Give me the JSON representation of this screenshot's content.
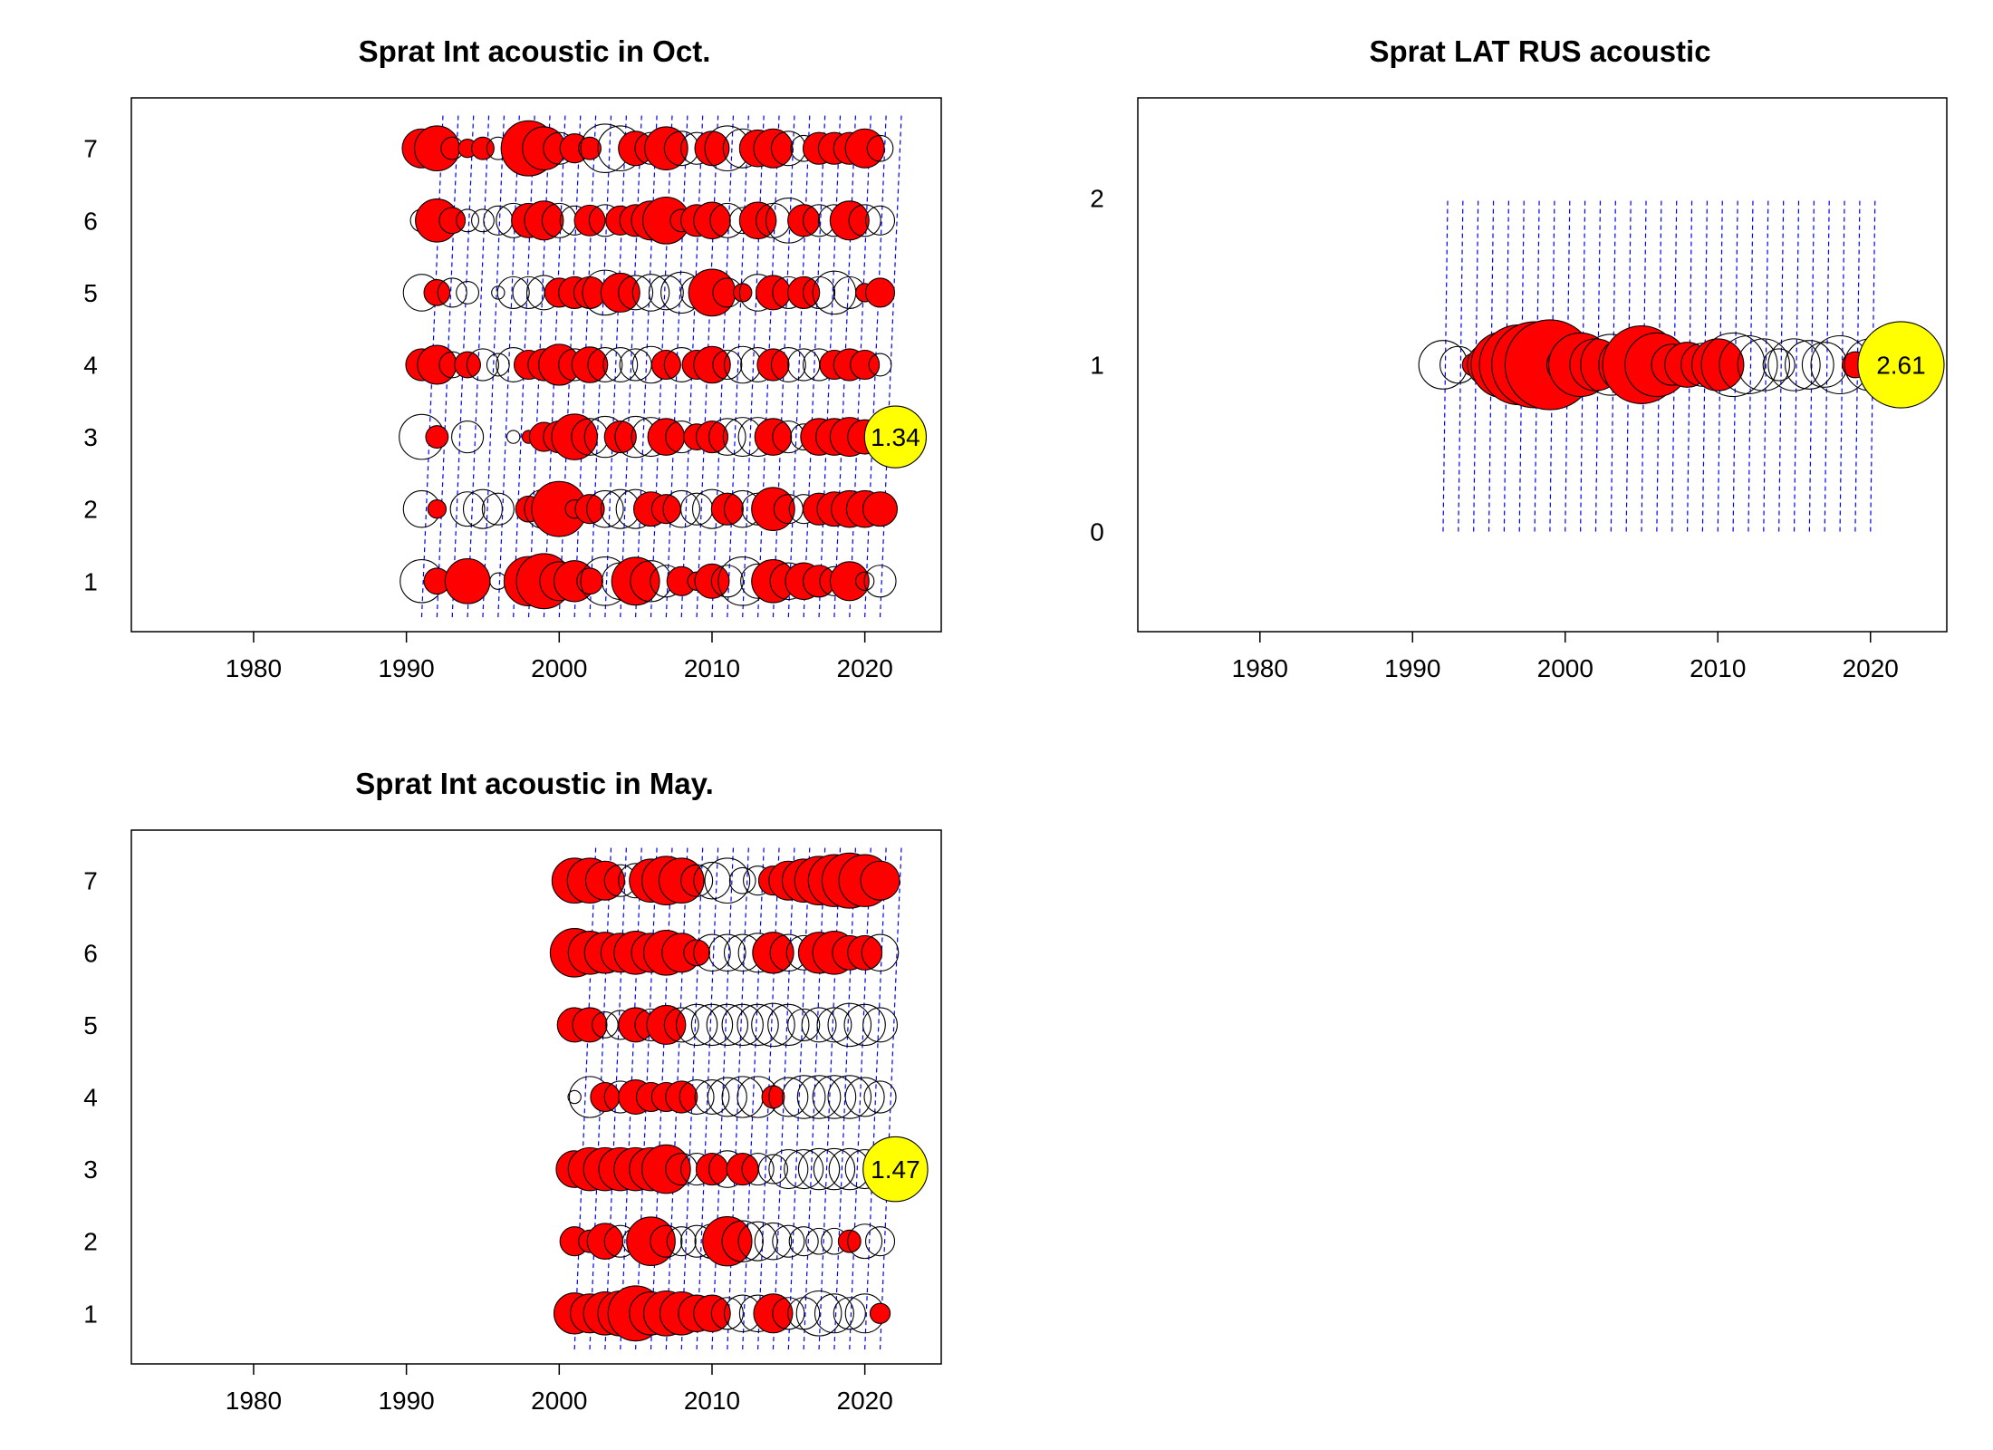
{
  "chart_data": [
    {
      "type": "scatter",
      "subtype": "residual-bubble",
      "title": "Sprat Int acoustic in Oct.",
      "xlim": [
        1972,
        2025
      ],
      "ylim": [
        0.3,
        7.7
      ],
      "xticks": [
        1980,
        1990,
        2000,
        2010,
        2020
      ],
      "yticks": [
        1,
        2,
        3,
        4,
        5,
        6,
        7
      ],
      "years": [
        1991,
        1992,
        1993,
        1994,
        1995,
        1996,
        1997,
        1998,
        1999,
        2000,
        2001,
        2002,
        2003,
        2004,
        2005,
        2006,
        2007,
        2008,
        2009,
        2010,
        2011,
        2012,
        2013,
        2014,
        2015,
        2016,
        2017,
        2018,
        2019,
        2020,
        2021
      ],
      "residuals": [
        [
          -0.55,
          0.2,
          0,
          0.6,
          0,
          -0.08,
          0,
          0.72,
          0.9,
          -0.45,
          0.5,
          0.2,
          -0.7,
          -0.4,
          0.68,
          -0.5,
          -0.3,
          0.25,
          0.1,
          0.35,
          -0.3,
          -0.7,
          -0.35,
          0.55,
          -0.4,
          0.4,
          0.3,
          -0.25,
          0.45,
          -0.1,
          -0.3
        ],
        [
          -0.4,
          0.1,
          0,
          -0.35,
          -0.45,
          -0.3,
          0,
          0.2,
          -0.45,
          0.9,
          0.1,
          0.25,
          -0.4,
          -0.45,
          -0.45,
          0.35,
          0.25,
          -0.4,
          -0.3,
          -0.45,
          0.3,
          -0.4,
          -0.3,
          0.55,
          -0.25,
          -0.25,
          0.3,
          0.35,
          0.4,
          0.4,
          0.35
        ],
        [
          -0.6,
          0.15,
          0,
          -0.3,
          0,
          0,
          -0.05,
          0.05,
          0.25,
          0.3,
          0.62,
          -0.4,
          -0.5,
          0.3,
          -0.5,
          -0.45,
          0.4,
          -0.3,
          0.2,
          0.3,
          -0.4,
          -0.45,
          -0.45,
          0.4,
          -0.3,
          -0.2,
          0.4,
          0.4,
          0.45,
          0.35,
          -0.25
        ],
        [
          0.3,
          0.45,
          -0.2,
          0.2,
          -0.3,
          -0.15,
          -0.35,
          0.25,
          0.3,
          0.5,
          -0.3,
          0.38,
          -0.35,
          -0.35,
          -0.3,
          -0.4,
          0.25,
          -0.35,
          0.25,
          0.4,
          -0.25,
          -0.4,
          -0.35,
          0.3,
          -0.35,
          -0.3,
          -0.3,
          0.25,
          0.3,
          0.25,
          -0.15
        ],
        [
          -0.4,
          0.2,
          -0.25,
          -0.15,
          0,
          -0.05,
          -0.3,
          -0.3,
          -0.35,
          0.25,
          0.3,
          0.3,
          -0.6,
          0.45,
          -0.35,
          -0.4,
          -0.35,
          -0.5,
          -0.3,
          0.65,
          -0.25,
          0.1,
          -0.4,
          0.35,
          -0.3,
          0.3,
          -0.3,
          -0.55,
          -0.3,
          0.1,
          0.25
        ],
        [
          -0.15,
          0.55,
          0.2,
          -0.15,
          -0.15,
          -0.25,
          -0.35,
          0.35,
          0.45,
          -0.35,
          -0.25,
          0.28,
          -0.3,
          0.25,
          0.3,
          0.45,
          0.65,
          0.15,
          0.3,
          0.4,
          -0.35,
          -0.2,
          0.4,
          -0.35,
          -0.6,
          0.3,
          -0.3,
          -0.3,
          0.45,
          -0.3,
          -0.25
        ],
        [
          0.45,
          0.6,
          -0.15,
          0.1,
          0.15,
          -0.15,
          0,
          0.9,
          0.55,
          -0.3,
          0.25,
          0.15,
          -0.7,
          -0.6,
          0.35,
          -0.3,
          0.55,
          -0.35,
          -0.3,
          0.35,
          -0.6,
          -0.45,
          0.4,
          0.45,
          -0.35,
          -0.2,
          0.3,
          0.3,
          0.3,
          0.45,
          -0.2
        ]
      ],
      "highlight": {
        "year": 2022,
        "age": 3,
        "label": "1.34"
      },
      "legend": "none",
      "grid": false
    },
    {
      "type": "scatter",
      "subtype": "residual-bubble",
      "title": "Sprat LAT RUS acoustic",
      "xlim": [
        1972,
        2025
      ],
      "ylim": [
        -0.6,
        2.6
      ],
      "xticks": [
        1980,
        1990,
        2000,
        2010,
        2020
      ],
      "yticks": [
        0,
        1,
        2
      ],
      "years": [
        1992,
        1993,
        1994,
        1995,
        1996,
        1997,
        1998,
        1999,
        2000,
        2001,
        2002,
        2003,
        2004,
        2005,
        2006,
        2007,
        2008,
        2009,
        2010,
        2011,
        2012,
        2013,
        2014,
        2015,
        2016,
        2017,
        2018,
        2019,
        2020
      ],
      "residuals": [
        [
          -0.7,
          -0.4,
          0.15,
          0.55,
          1.3,
          1.9,
          2.2,
          2.4,
          -0.4,
          1.2,
          0.8,
          -1.1,
          0.9,
          1.8,
          1.2,
          -0.5,
          0.6,
          -0.55,
          0.8,
          -1.2,
          -1.0,
          -0.8,
          -0.3,
          -0.8,
          -0.7,
          -0.6,
          -1.0,
          0.2,
          -0.8
        ]
      ],
      "highlight": {
        "year": 2022,
        "age": 1,
        "label": "2.61"
      },
      "legend": "none",
      "grid": false
    },
    {
      "type": "scatter",
      "subtype": "residual-bubble",
      "title": "Sprat Int acoustic in May.",
      "xlim": [
        1972,
        2025
      ],
      "ylim": [
        0.3,
        7.7
      ],
      "xticks": [
        1980,
        1990,
        2000,
        2010,
        2020
      ],
      "yticks": [
        1,
        2,
        3,
        4,
        5,
        6,
        7
      ],
      "years": [
        2001,
        2002,
        2003,
        2004,
        2005,
        2006,
        2007,
        2008,
        2009,
        2010,
        2011,
        2012,
        2013,
        2014,
        2015,
        2016,
        2017,
        2018,
        2019,
        2020,
        2021
      ],
      "residuals": [
        [
          0.5,
          0.45,
          0.55,
          0.6,
          0.9,
          0.55,
          0.6,
          0.55,
          0.4,
          0.4,
          -0.3,
          -0.4,
          -0.4,
          0.45,
          -0.3,
          -0.3,
          -0.6,
          -0.45,
          -0.3,
          -0.45,
          0.12
        ],
        [
          0.25,
          0.15,
          0.38,
          -0.3,
          -0.2,
          0.7,
          -0.3,
          -0.25,
          -0.3,
          -0.35,
          0.72,
          -0.5,
          -0.45,
          -0.4,
          -0.3,
          -0.25,
          -0.2,
          -0.2,
          0.15,
          -0.35,
          -0.25
        ],
        [
          0.4,
          0.55,
          0.55,
          0.55,
          0.55,
          0.55,
          0.7,
          -0.3,
          -0.3,
          0.3,
          -0.4,
          0.3,
          -0.3,
          -0.25,
          -0.45,
          -0.45,
          -0.5,
          -0.5,
          -0.5,
          -0.45,
          0.25
        ],
        [
          -0.05,
          -0.5,
          0.25,
          -0.3,
          0.35,
          0.25,
          0.25,
          0.3,
          -0.35,
          -0.35,
          -0.45,
          -0.5,
          -0.5,
          0.15,
          -0.45,
          -0.55,
          -0.55,
          -0.55,
          -0.55,
          -0.45,
          -0.3
        ],
        [
          0.35,
          0.35,
          -0.2,
          -0.25,
          0.35,
          -0.3,
          0.45,
          -0.35,
          -0.5,
          -0.5,
          -0.5,
          -0.5,
          -0.5,
          -0.55,
          -0.5,
          -0.3,
          -0.35,
          -0.35,
          -0.55,
          -0.5,
          -0.35
        ],
        [
          0.7,
          0.55,
          0.5,
          0.45,
          0.55,
          0.45,
          0.6,
          0.45,
          0.2,
          -0.4,
          -0.4,
          -0.4,
          -0.45,
          0.5,
          -0.4,
          -0.35,
          0.5,
          0.55,
          0.35,
          0.35,
          -0.4
        ],
        [
          0.6,
          0.6,
          0.45,
          -0.3,
          -0.35,
          0.55,
          0.7,
          0.6,
          -0.3,
          -0.4,
          -0.6,
          -0.2,
          -0.25,
          0.25,
          0.45,
          0.55,
          0.7,
          0.8,
          0.9,
          0.8,
          0.45
        ]
      ],
      "highlight": {
        "year": 2022,
        "age": 3,
        "label": "1.47"
      },
      "legend": "none",
      "grid": false
    }
  ],
  "colors": {
    "positive_fill": "#ff0000",
    "negative_fill": "none",
    "outline": "#000000",
    "cohort_line": "#0000ff",
    "highlight_fill": "#ffff00"
  }
}
